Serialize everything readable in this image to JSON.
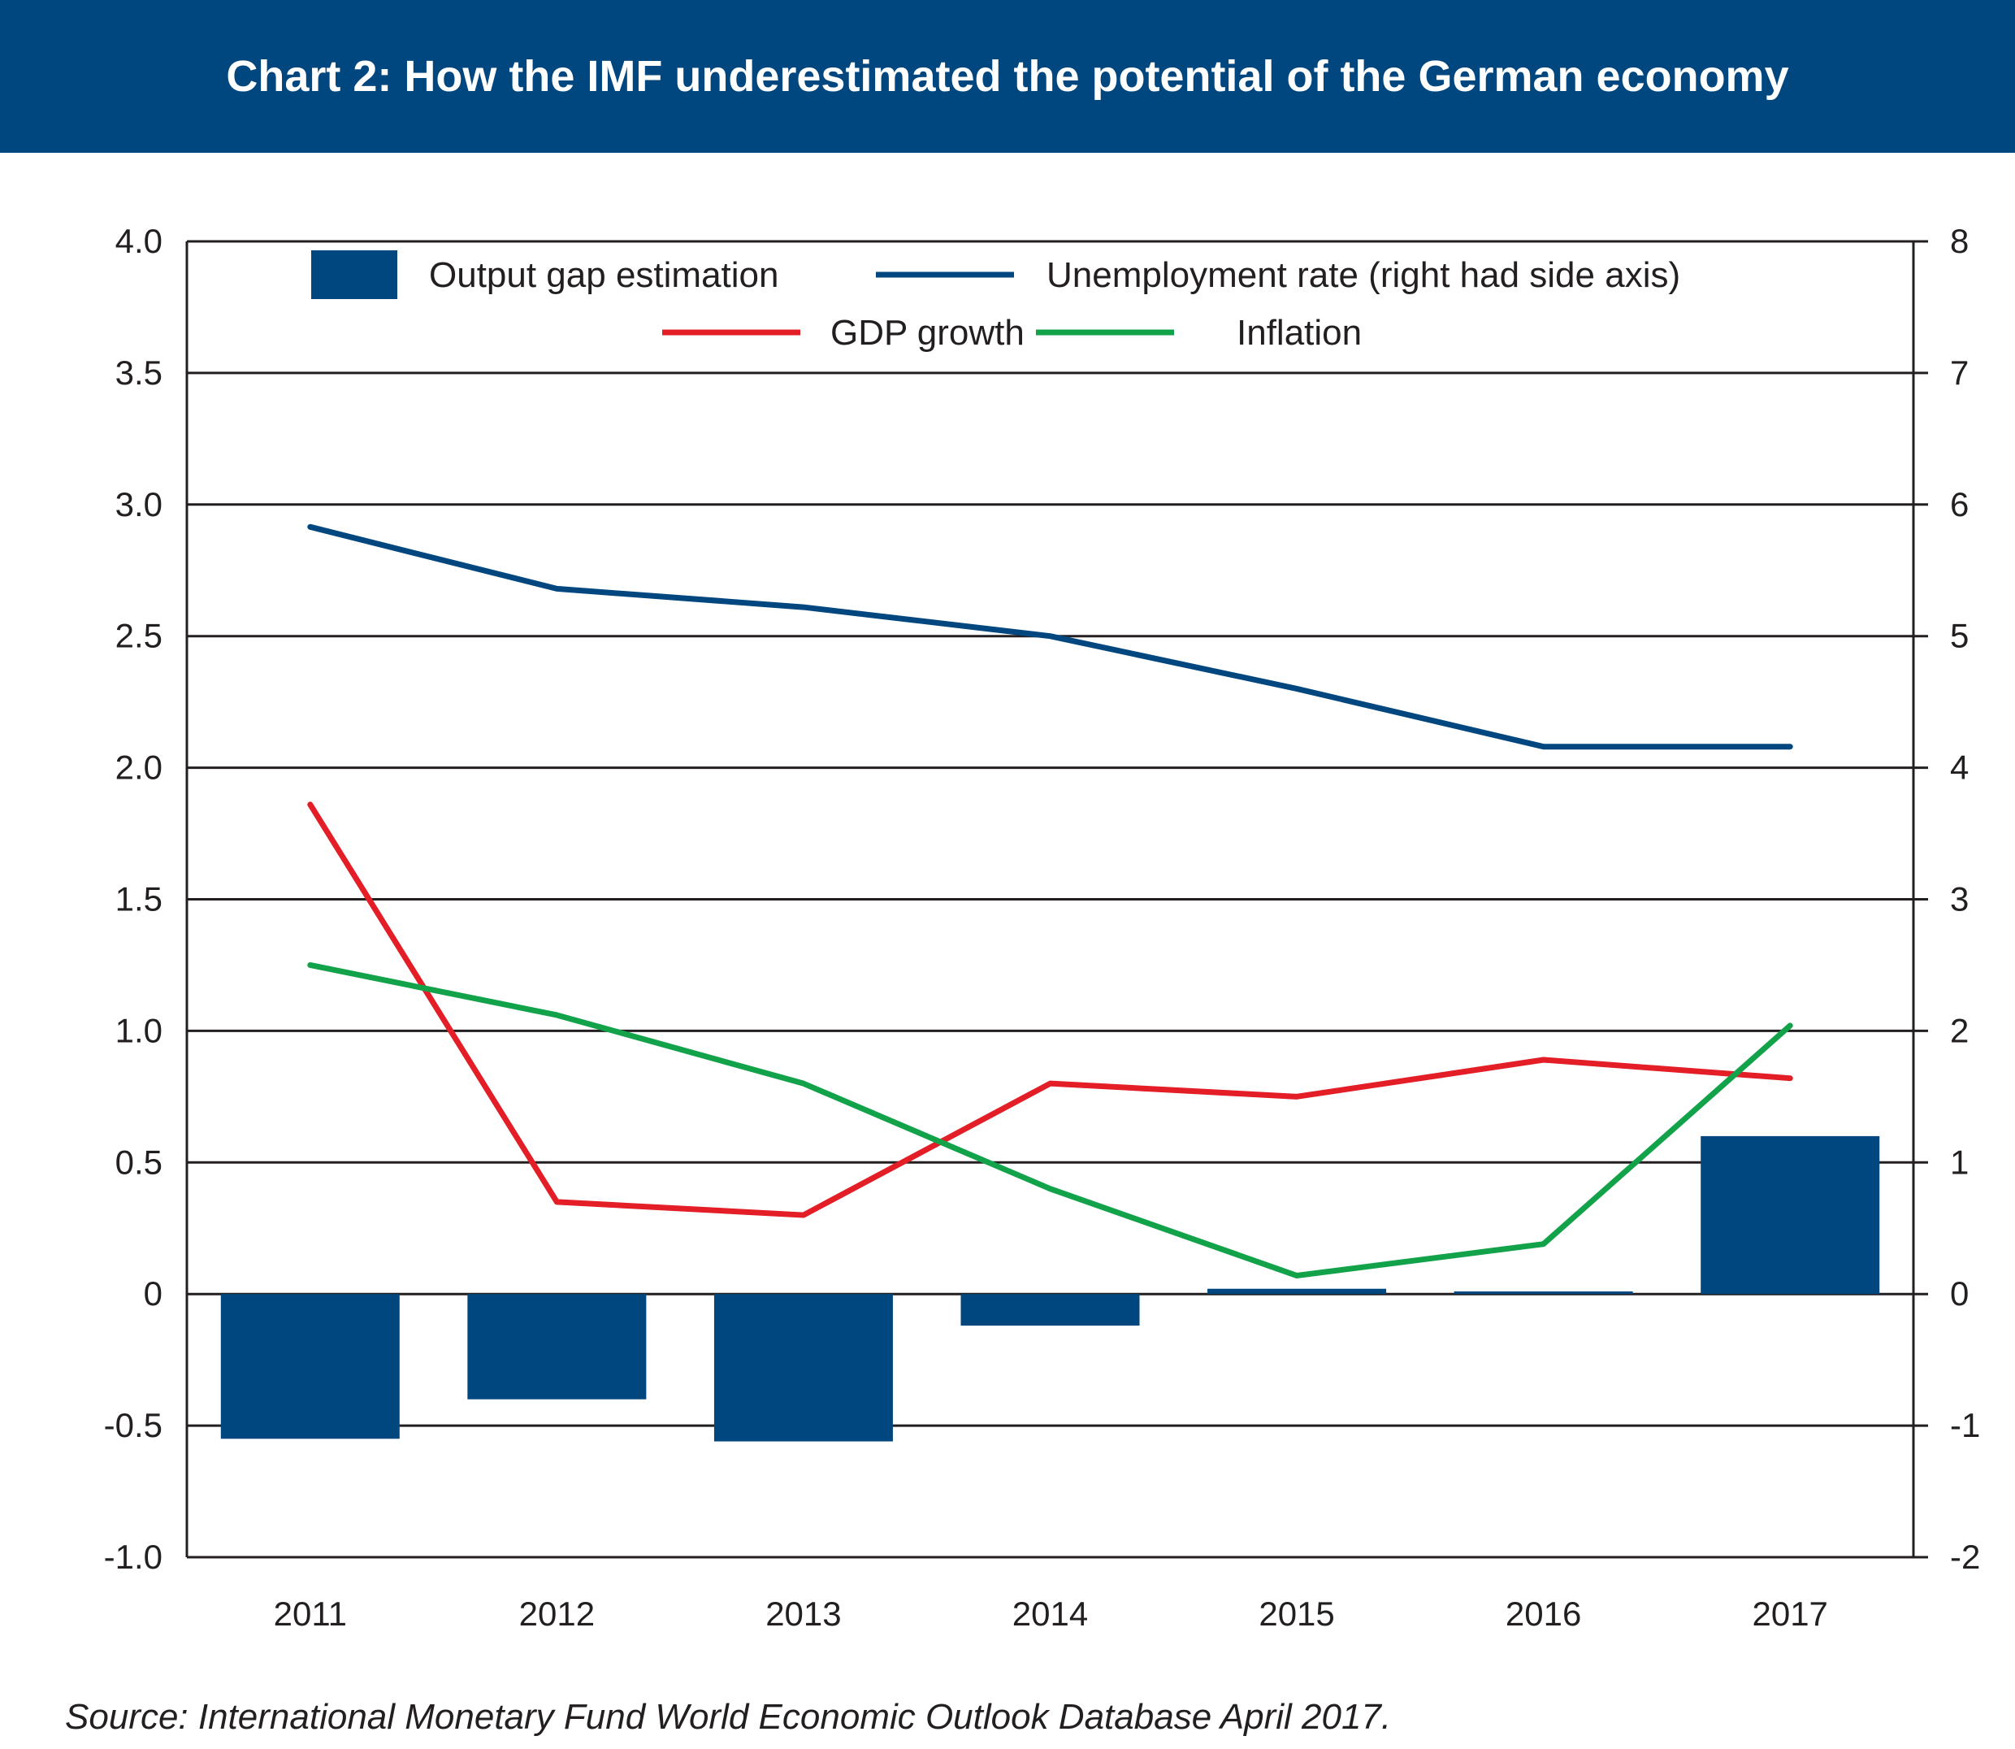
{
  "title": "Chart 2: How the IMF underestimated the potential of the German economy",
  "source": "Source: International Monetary Fund World Economic Outlook Database April 2017.",
  "chart_data": {
    "type": "bar",
    "categories": [
      "2011",
      "2012",
      "2013",
      "2014",
      "2015",
      "2016",
      "2017"
    ],
    "ylim": [
      -1.0,
      4.0
    ],
    "y_ticks": [
      "4.0",
      "3.5",
      "3.0",
      "2.5",
      "2.0",
      "1.5",
      "1.0",
      "0.5",
      "0",
      "-0.5",
      "-1.0"
    ],
    "y2lim": [
      -2,
      8
    ],
    "y2_ticks": [
      "8",
      "7",
      "6",
      "5",
      "4",
      "3",
      "2",
      "1",
      "0",
      "-1",
      "-2"
    ],
    "grid": true,
    "legend_position": "top",
    "series": [
      {
        "name": "Output gap estimation",
        "type": "bar",
        "axis": "left",
        "color": "#00467f",
        "values": [
          -0.55,
          -0.4,
          -0.56,
          -0.12,
          0.02,
          0.01,
          0.6
        ]
      },
      {
        "name": "Unemployment rate (right had side axis)",
        "type": "line",
        "axis": "right",
        "color": "#00467f",
        "values": [
          5.83,
          5.36,
          5.22,
          5.0,
          4.6,
          4.16,
          4.16
        ]
      },
      {
        "name": "GDP growth",
        "type": "line",
        "axis": "left",
        "color": "#e31e26",
        "values": [
          1.86,
          0.35,
          0.3,
          0.8,
          0.75,
          0.89,
          0.82
        ]
      },
      {
        "name": "Inflation",
        "type": "line",
        "axis": "left",
        "color": "#12a24a",
        "values": [
          1.25,
          1.06,
          0.8,
          0.4,
          0.07,
          0.19,
          1.02
        ]
      }
    ]
  }
}
